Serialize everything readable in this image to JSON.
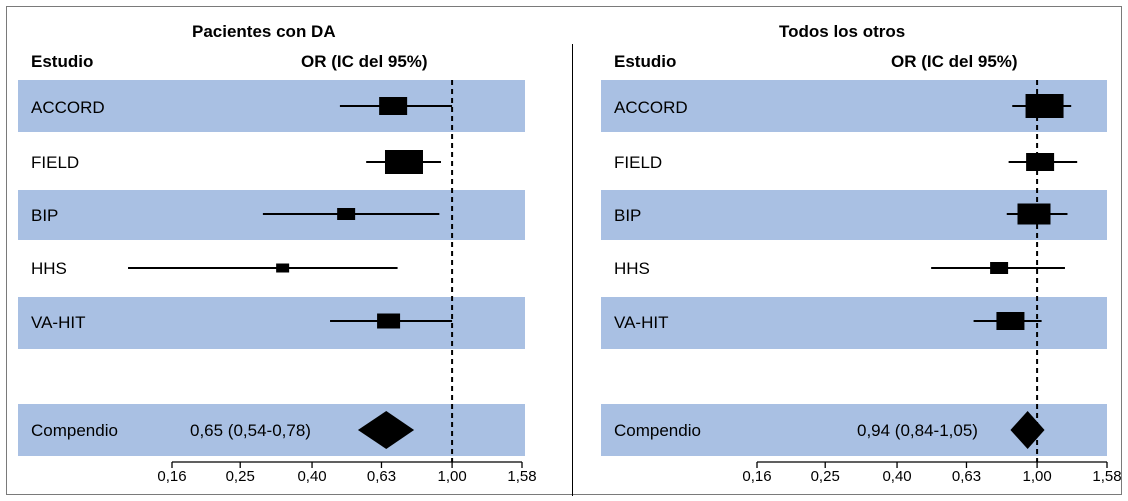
{
  "chart_data": [
    {
      "type": "forest",
      "title": "Pacientes con DA",
      "column_headers": {
        "study": "Estudio",
        "effect": "OR (IC del 95%)"
      },
      "x_scale": "log",
      "xlim": [
        0.16,
        1.58
      ],
      "x_ticks": [
        "0,16",
        "0,25",
        "0,40",
        "0,63",
        "1,00",
        "1,58"
      ],
      "reference_line": 1.0,
      "studies": [
        {
          "name": "ACCORD",
          "or": 0.68,
          "ci": [
            0.48,
            1.0
          ],
          "weight": 4
        },
        {
          "name": "FIELD",
          "or": 0.73,
          "ci": [
            0.57,
            0.93
          ],
          "weight": 6
        },
        {
          "name": "BIP",
          "or": 0.5,
          "ci": [
            0.29,
            0.92
          ],
          "weight": 2
        },
        {
          "name": "HHS",
          "or": 0.33,
          "ci": [
            0.12,
            0.7
          ],
          "weight": 1
        },
        {
          "name": "VA-HIT",
          "or": 0.66,
          "ci": [
            0.45,
            1.0
          ],
          "weight": 3
        }
      ],
      "pooled": {
        "name": "Compendio",
        "or": 0.65,
        "ci": [
          0.54,
          0.78
        ],
        "label": "0,65 (0,54-0,78)"
      }
    },
    {
      "type": "forest",
      "title": "Todos los otros",
      "column_headers": {
        "study": "Estudio",
        "effect": "OR (IC del 95%)"
      },
      "x_scale": "log",
      "xlim": [
        0.16,
        1.58
      ],
      "x_ticks": [
        "0,16",
        "0,25",
        "0,40",
        "0,63",
        "1,00",
        "1,58"
      ],
      "reference_line": 1.0,
      "studies": [
        {
          "name": "ACCORD",
          "or": 1.05,
          "ci": [
            0.85,
            1.25
          ],
          "weight": 6
        },
        {
          "name": "FIELD",
          "or": 1.02,
          "ci": [
            0.83,
            1.3
          ],
          "weight": 4
        },
        {
          "name": "BIP",
          "or": 0.98,
          "ci": [
            0.82,
            1.22
          ],
          "weight": 5
        },
        {
          "name": "HHS",
          "or": 0.78,
          "ci": [
            0.5,
            1.2
          ],
          "weight": 2
        },
        {
          "name": "VA-HIT",
          "or": 0.84,
          "ci": [
            0.66,
            1.03
          ],
          "weight": 4
        }
      ],
      "pooled": {
        "name": "Compendio",
        "or": 0.94,
        "ci": [
          0.84,
          1.05
        ],
        "label": "0,94 (0,84-1,05)"
      }
    }
  ]
}
